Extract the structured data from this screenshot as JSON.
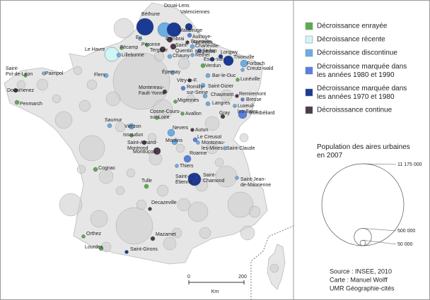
{
  "legend": {
    "items": [
      {
        "label": "Décroissance enrayée",
        "color": "#5aad4e"
      },
      {
        "label": "Décroissance récente",
        "color": "#cff5f5"
      },
      {
        "label": "Décroissance discontinue",
        "color": "#6aaee6"
      },
      {
        "label": "Décroissance marquée dans les années 1980 et 1990",
        "color": "#5b7fe0"
      },
      {
        "label": "Décroissance marquée dans les années 1970 et 1980",
        "color": "#1b3a94"
      },
      {
        "label": "Décroisssance continue",
        "color": "#4e3a4a"
      }
    ]
  },
  "population": {
    "title": "Population des aires urbaines en 2007",
    "circles": [
      {
        "value": 11175000,
        "label": "11 175 000"
      },
      {
        "value": 500000,
        "label": "500 000"
      },
      {
        "value": 50000,
        "label": "50 000"
      }
    ]
  },
  "scale": {
    "start": "0",
    "end": "200",
    "unit": "Km"
  },
  "source": {
    "lines": [
      "Source : INSEE, 2010",
      "Carte : Manuel Wolff",
      "UMR Géographie-cités"
    ]
  },
  "cities": [
    {
      "label": "Béthune",
      "color": "#1b3a94"
    },
    {
      "label": "Douai-Lens",
      "color": "#6aaee6"
    },
    {
      "label": "Valenciennes",
      "color": "#1b3a94"
    },
    {
      "label": "Maubeuge",
      "color": "#1b3a94"
    },
    {
      "label": "Aulnoye-Aymeries",
      "color": "#5b7fe0"
    },
    {
      "label": "Fourmies",
      "color": "#4e3a4a"
    },
    {
      "label": "Charleville-Mézières",
      "color": "#6aaee6"
    },
    {
      "label": "Sedan",
      "color": "#5b7fe0"
    },
    {
      "label": "Longwy",
      "color": "#1b3a94"
    },
    {
      "label": "Thionville",
      "color": "#1b3a94"
    },
    {
      "label": "Esch-sur-",
      "color": "#1b3a94"
    },
    {
      "label": "Forbach",
      "color": "#6aaee6"
    },
    {
      "label": "Creutz-wald",
      "color": "#6aaee6"
    },
    {
      "label": "Lunéville",
      "color": "#5aad4e"
    },
    {
      "label": "Rethel",
      "color": "#6aaee6"
    },
    {
      "label": "Cambrai",
      "color": "#4e3a4a"
    },
    {
      "label": "Saint-Quentin",
      "color": "#4e3a4a"
    },
    {
      "label": "Tergnier",
      "color": "#4e3a4a"
    },
    {
      "label": "Chauny",
      "color": "#6aaee6"
    },
    {
      "label": "Verdun",
      "color": "#5aad4e"
    },
    {
      "label": "Eu",
      "color": "#6aaee6"
    },
    {
      "label": "Fécamp",
      "color": "#5aad4e"
    },
    {
      "label": "Le Havre",
      "color": "#cff5f5"
    },
    {
      "label": "Lillebonne",
      "color": "#6aaee6"
    },
    {
      "label": "Péronne",
      "color": "#5aad4e"
    },
    {
      "label": "Saint-Pol-de-Léon",
      "color": "#5aad4e"
    },
    {
      "label": "Paimpol",
      "color": "#6aaee6"
    },
    {
      "label": "Flers",
      "color": "#6aaee6"
    },
    {
      "label": "Épernay",
      "color": "#6aaee6"
    },
    {
      "label": "Bar-le-Duc",
      "color": "#6aaee6"
    },
    {
      "label": "Vitry-le-F.",
      "color": "#4e3a4a"
    },
    {
      "label": "Saint-Dizier",
      "color": "#6aaee6"
    },
    {
      "label": "Romilly-sur-Seine",
      "color": "#5b7fe0"
    },
    {
      "label": "Douarnenez",
      "color": "#4e3a4a"
    },
    {
      "label": "Penmarch",
      "color": "#5aad4e"
    },
    {
      "label": "Chaumont",
      "color": "#6aaee6"
    },
    {
      "label": "Remiremont",
      "color": "#4e3a4a"
    },
    {
      "label": "Bresse",
      "color": "#5b7fe0"
    },
    {
      "label": "Luxeuil-les-Bains",
      "color": "#6aaee6"
    },
    {
      "label": "Montereau-Fault-Yonne",
      "color": "#4e3a4a"
    },
    {
      "label": "Migennes",
      "color": "#5aad4e"
    },
    {
      "label": "Langres",
      "color": "#6aaee6"
    },
    {
      "label": "Montbéliard",
      "color": "#5b7fe0"
    },
    {
      "label": "Gray",
      "color": "#4e3a4a"
    },
    {
      "label": "Avallon",
      "color": "#5aad4e"
    },
    {
      "label": "Cosne-Cours-sur-Loire",
      "color": "#5aad4e"
    },
    {
      "label": "Saumur",
      "color": "#6aaee6"
    },
    {
      "label": "Vierzon",
      "color": "#6aaee6"
    },
    {
      "label": "Issoudun",
      "color": "#5aad4e"
    },
    {
      "label": "Nevers",
      "color": "#6aaee6"
    },
    {
      "label": "Autun",
      "color": "#4e3a4a"
    },
    {
      "label": "Le Creusot",
      "color": "#5b7fe0"
    },
    {
      "label": "Saint-Amand-Montrond",
      "color": "#4e3a4a"
    },
    {
      "label": "Moulins",
      "color": "#6aaee6"
    },
    {
      "label": "Montceau-les-Mines",
      "color": "#6aaee6"
    },
    {
      "label": "Saint-Claude",
      "color": "#6aaee6"
    },
    {
      "label": "Montluçon",
      "color": "#4e3a4a"
    },
    {
      "label": "Roanne",
      "color": "#5b7fe0"
    },
    {
      "label": "Thiers",
      "color": "#6aaee6"
    },
    {
      "label": "Cognac",
      "color": "#5aad4e"
    },
    {
      "label": "Saint-Étienne",
      "color": "#1b3a94"
    },
    {
      "label": "Saint-Chamond",
      "color": "#1b3a94"
    },
    {
      "label": "Saint-Jean-de-Maurienne",
      "color": "#6aaee6"
    },
    {
      "label": "Tulle",
      "color": "#5aad4e"
    },
    {
      "label": "Decazeville",
      "color": "#4e3a4a"
    },
    {
      "label": "Orthez",
      "color": "#5aad4e"
    },
    {
      "label": "Mazamet",
      "color": "#4e3a4a"
    },
    {
      "label": "Lourdes",
      "color": "#5aad4e"
    },
    {
      "label": "Saint-Girons",
      "color": "#1b3a94"
    }
  ]
}
